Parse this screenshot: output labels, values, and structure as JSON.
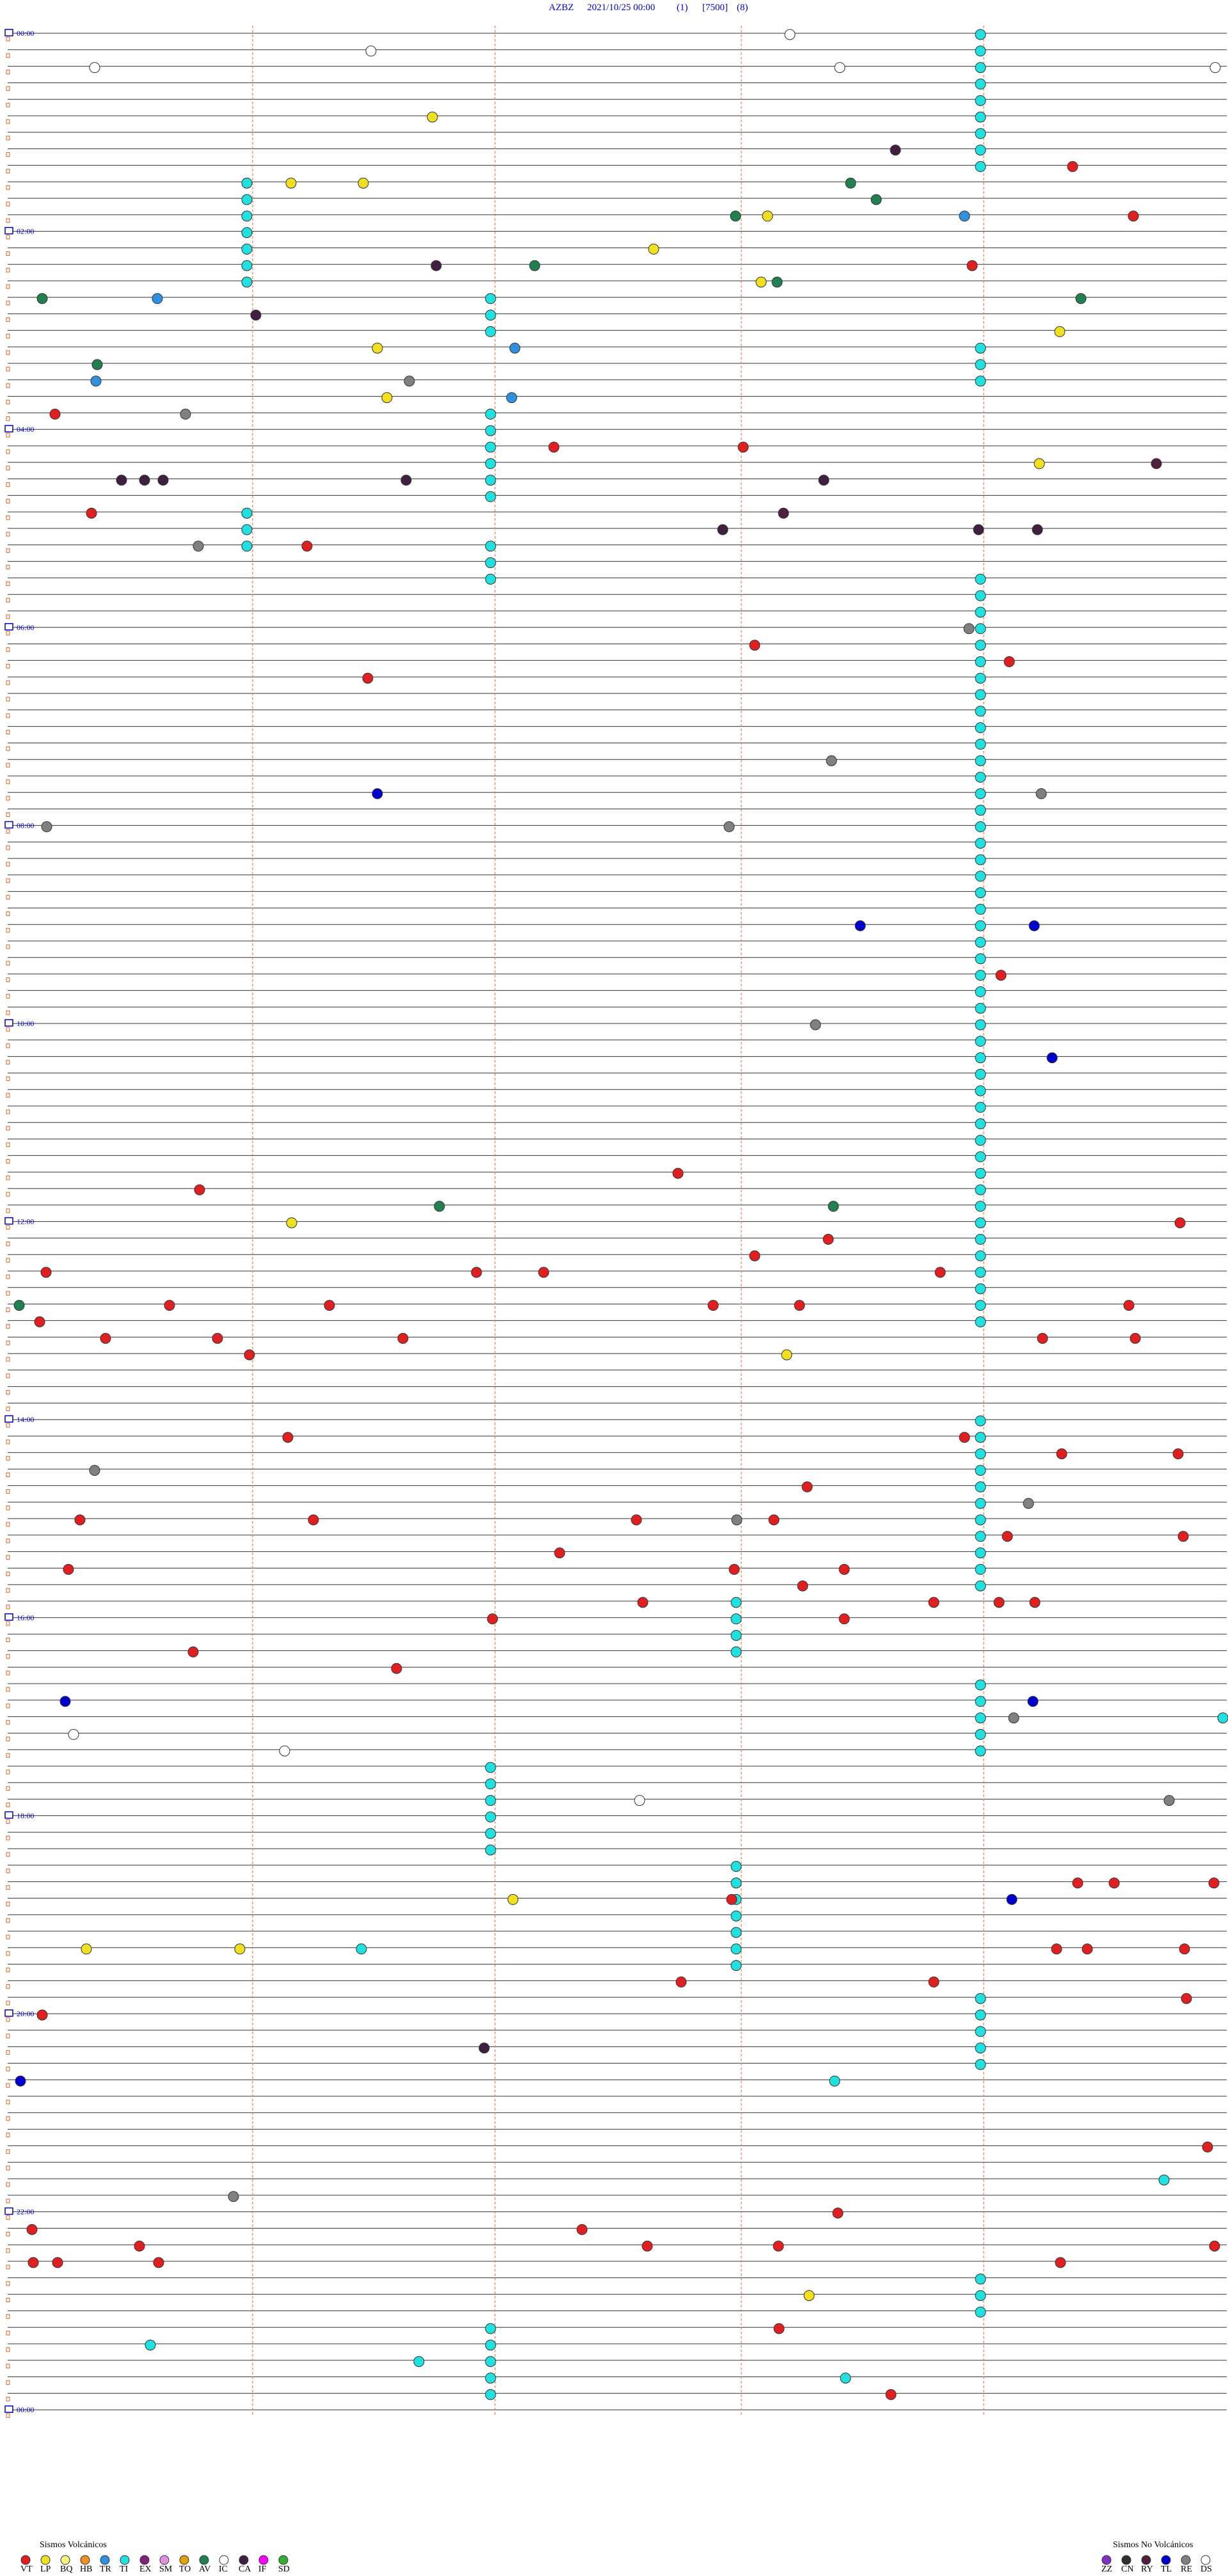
{
  "header": {
    "station": "AZBZ",
    "datetime": "2021/10/25 00:00",
    "channel": "(1)",
    "scale": "[7500]",
    "filter": "(8)"
  },
  "hour_labels": [
    "00:00",
    "02:00",
    "04:00",
    "06:00",
    "08:00",
    "10:00",
    "12:00",
    "14:00",
    "16:00",
    "18:00",
    "20:00",
    "22:00",
    "00:00"
  ],
  "legend": {
    "volcanic": {
      "title": "Sismos Volcánicos",
      "items": [
        "VT",
        "LP",
        "BQ",
        "HB",
        "TR",
        "TI",
        "EX",
        "SM",
        "TO",
        "AV",
        "IC",
        "CA",
        "IF",
        "SD"
      ]
    },
    "non_volcanic": {
      "title": "Sismos No Volcánicos",
      "items": [
        "ZZ",
        "CN",
        "RY",
        "TL",
        "RE",
        "DS"
      ]
    }
  }
}
